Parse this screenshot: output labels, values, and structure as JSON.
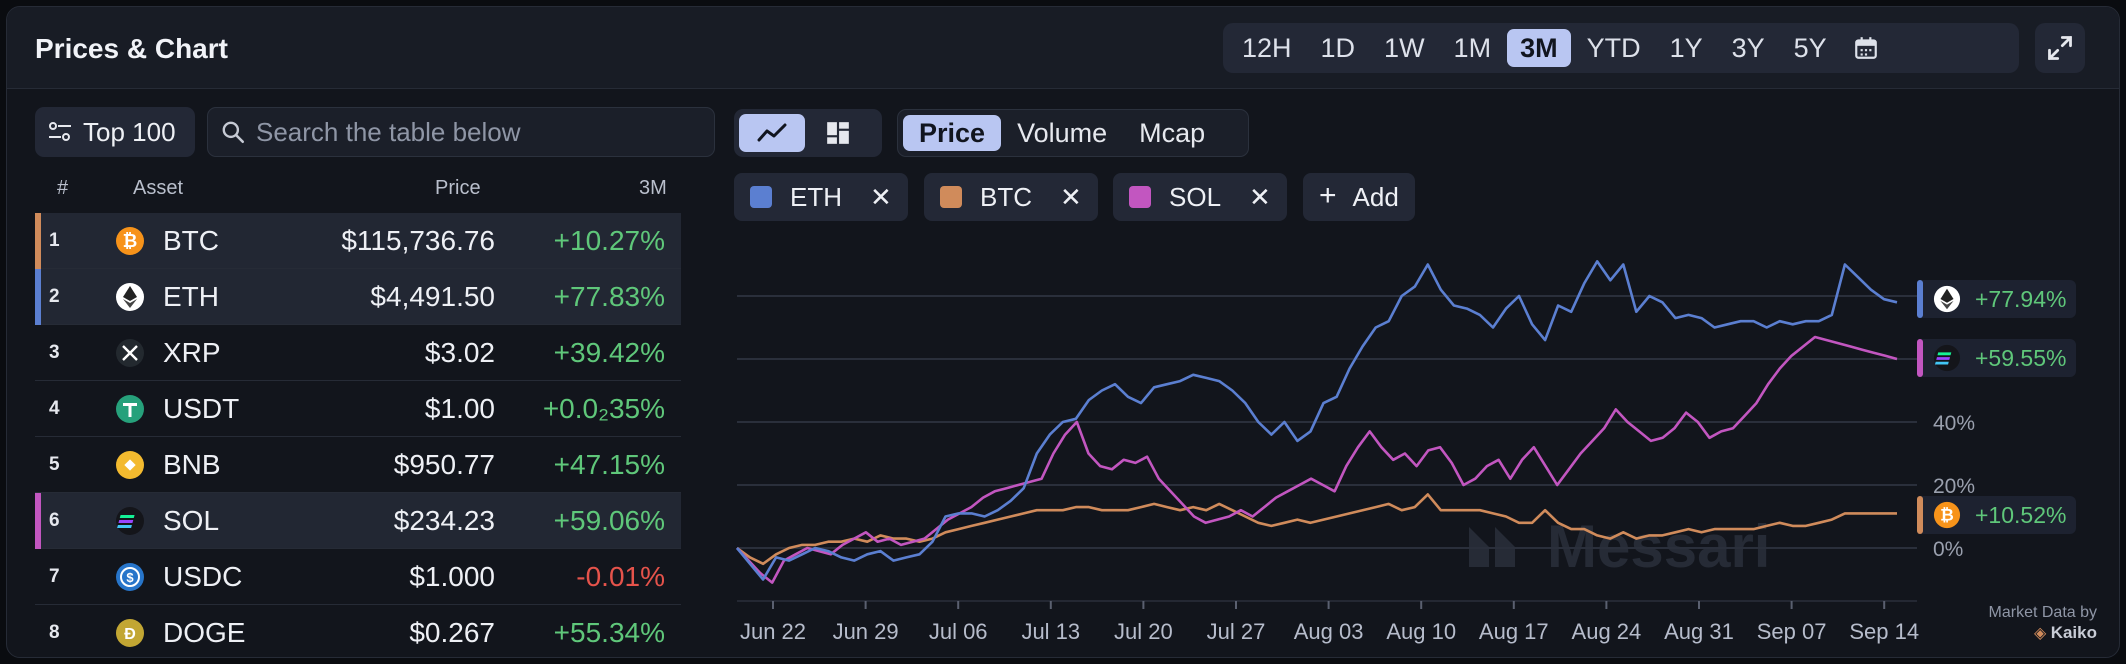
{
  "header": {
    "title": "Prices & Chart",
    "ranges": [
      "12H",
      "1D",
      "1W",
      "1M",
      "3M",
      "YTD",
      "1Y",
      "3Y",
      "5Y"
    ],
    "active_range": "3M"
  },
  "filter": {
    "label": "Top 100"
  },
  "search": {
    "placeholder": "Search the table below"
  },
  "table": {
    "headers": {
      "rank": "#",
      "asset": "Asset",
      "price": "Price",
      "change": "3M"
    },
    "rows": [
      {
        "rank": "1",
        "symbol": "BTC",
        "price": "$115,736.76",
        "change": "+10.27%",
        "positive": true,
        "selected": true,
        "bar_color": "#d08b5b",
        "icon_color": "#f7931a"
      },
      {
        "rank": "2",
        "symbol": "ETH",
        "price": "$4,491.50",
        "change": "+77.83%",
        "positive": true,
        "selected": true,
        "bar_color": "#5b7fd1",
        "icon_color": "#ffffff"
      },
      {
        "rank": "3",
        "symbol": "XRP",
        "price": "$3.02",
        "change": "+39.42%",
        "positive": true,
        "selected": false,
        "bar_color": "",
        "icon_color": "#23292f"
      },
      {
        "rank": "4",
        "symbol": "USDT",
        "price": "$1.00",
        "change": "+0.0₂35%",
        "positive": true,
        "selected": false,
        "bar_color": "",
        "icon_color": "#26a17b"
      },
      {
        "rank": "5",
        "symbol": "BNB",
        "price": "$950.77",
        "change": "+47.15%",
        "positive": true,
        "selected": false,
        "bar_color": "",
        "icon_color": "#f3ba2f"
      },
      {
        "rank": "6",
        "symbol": "SOL",
        "price": "$234.23",
        "change": "+59.06%",
        "positive": true,
        "selected": true,
        "bar_color": "#c256c0",
        "icon_color": "#14151a"
      },
      {
        "rank": "7",
        "symbol": "USDC",
        "price": "$1.000",
        "change": "-0.01%",
        "positive": false,
        "selected": false,
        "bar_color": "",
        "icon_color": "#2775ca"
      },
      {
        "rank": "8",
        "symbol": "DOGE",
        "price": "$0.267",
        "change": "+55.34%",
        "positive": true,
        "selected": false,
        "bar_color": "",
        "icon_color": "#c2a633"
      }
    ]
  },
  "metrics": [
    "Price",
    "Volume",
    "Mcap"
  ],
  "active_metric": "Price",
  "chips": [
    {
      "label": "ETH",
      "color": "#5b7fd1"
    },
    {
      "label": "BTC",
      "color": "#d08b5b"
    },
    {
      "label": "SOL",
      "color": "#c256c0"
    }
  ],
  "add_label": "Add",
  "watermark": "Messari",
  "attribution": {
    "line1": "Market Data by",
    "line2": "Kaiko"
  },
  "chart_data": {
    "type": "line",
    "y_unit": "%",
    "y_ticks": [
      "0%",
      "20%",
      "40%"
    ],
    "y_tick_values": [
      0,
      20,
      40
    ],
    "ylim": [
      -15,
      95
    ],
    "x_tick_labels": [
      "Jun 22",
      "Jun 29",
      "Jul 06",
      "Jul 13",
      "Jul 20",
      "Jul 27",
      "Aug 03",
      "Aug 10",
      "Aug 17",
      "Aug 24",
      "Aug 31",
      "Sep 07",
      "Sep 14"
    ],
    "grid": true,
    "series": [
      {
        "name": "ETH",
        "color": "#5b7fd1",
        "end_label": "+77.94%",
        "values": [
          0,
          -5,
          -10,
          -3,
          -4,
          -2,
          0,
          -1,
          -3,
          -4,
          -2,
          -1,
          -4,
          -3,
          -2,
          2,
          10,
          11,
          11,
          10,
          12,
          15,
          19,
          30,
          36,
          40,
          41,
          47,
          50,
          52,
          48,
          46,
          51,
          52,
          53,
          55,
          54,
          53,
          50,
          46,
          40,
          36,
          40,
          34,
          37,
          46,
          48,
          57,
          64,
          70,
          72,
          80,
          83,
          90,
          82,
          77,
          76,
          74,
          70,
          76,
          80,
          71,
          66,
          77,
          75,
          84,
          91,
          85,
          90,
          75,
          80,
          78,
          73,
          74,
          73,
          70,
          71,
          72,
          72,
          70,
          72,
          71,
          72,
          72,
          74,
          90,
          86,
          82,
          79,
          78
        ]
      },
      {
        "name": "BTC",
        "color": "#d08b5b",
        "end_label": "+10.52%",
        "values": [
          0,
          -3,
          -5,
          -2,
          0,
          1,
          1,
          2,
          2,
          3,
          2,
          4,
          3,
          3,
          2,
          3,
          5,
          6,
          7,
          8,
          9,
          10,
          11,
          12,
          12,
          12,
          13,
          13,
          12,
          12,
          12,
          13,
          14,
          13,
          12,
          13,
          12,
          14,
          12,
          10,
          8,
          7,
          8,
          9,
          8,
          9,
          10,
          11,
          12,
          13,
          14,
          12,
          13,
          17,
          12,
          12,
          12,
          12,
          11,
          10,
          8,
          8,
          12,
          8,
          6,
          6,
          4,
          3,
          5,
          3,
          4,
          4,
          5,
          6,
          5,
          6,
          6,
          6,
          6,
          7,
          8,
          7,
          7,
          8,
          9,
          11,
          11,
          11,
          11,
          11
        ]
      },
      {
        "name": "SOL",
        "color": "#c256c0",
        "end_label": "+59.55%",
        "values": [
          0,
          -4,
          -8,
          -11,
          -4,
          -2,
          0,
          -1,
          -2,
          1,
          3,
          5,
          2,
          3,
          1,
          2,
          3,
          6,
          9,
          11,
          13,
          16,
          18,
          19,
          20,
          21,
          22,
          30,
          36,
          40,
          30,
          26,
          25,
          28,
          27,
          29,
          22,
          18,
          14,
          10,
          8,
          9,
          10,
          12,
          10,
          13,
          16,
          18,
          20,
          22,
          20,
          18,
          26,
          32,
          37,
          32,
          28,
          30,
          26,
          31,
          32,
          27,
          20,
          22,
          26,
          28,
          22,
          28,
          32,
          26,
          20,
          25,
          30,
          34,
          38,
          44,
          40,
          37,
          34,
          35,
          38,
          43,
          40,
          35,
          37,
          38,
          42,
          46,
          52,
          57,
          61,
          64,
          67,
          66,
          65,
          64,
          63,
          62,
          61,
          60
        ]
      }
    ]
  }
}
